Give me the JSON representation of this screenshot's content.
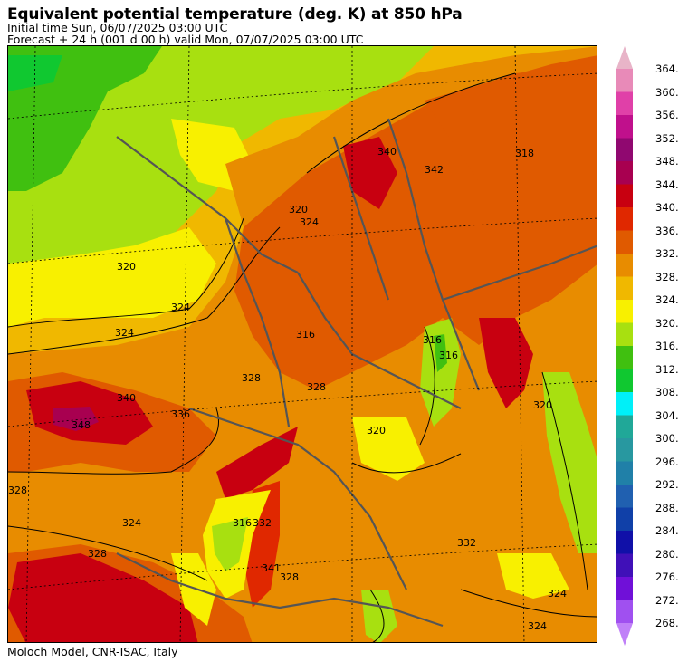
{
  "header": {
    "title": "Equivalent potential temperature (deg. K) at 850 hPa",
    "initial_time": "Initial time  Sun, 06/07/2025  03:00 UTC",
    "forecast": "Forecast  +  24 h  (001 d 00 h)  valid Mon, 07/07/2025  03:00 UTC"
  },
  "footer": "Moloch Model, CNR-ISAC, Italy",
  "colorbar": {
    "labels": [
      "364.",
      "360.",
      "356.",
      "352.",
      "348.",
      "344.",
      "340.",
      "336.",
      "332.",
      "328.",
      "324.",
      "320.",
      "316.",
      "312.",
      "308.",
      "304.",
      "300.",
      "296.",
      "292.",
      "288.",
      "284.",
      "280.",
      "276.",
      "272.",
      "268."
    ],
    "colors_top_to_bottom": [
      "#e8b4c8",
      "#e88ab8",
      "#e040a8",
      "#c0108c",
      "#900870",
      "#a80050",
      "#c80010",
      "#e02800",
      "#e05a00",
      "#e88c00",
      "#f0b800",
      "#f8f000",
      "#a8e010",
      "#40c010",
      "#10c830",
      "#00f0f8",
      "#20a898",
      "#2898a0",
      "#2080a8",
      "#2060b0",
      "#1040a8",
      "#1010a8",
      "#4010b8",
      "#7010d8",
      "#a050f0",
      "#c080f8"
    ]
  },
  "map": {
    "contour_labels": [
      "320",
      "324",
      "324",
      "324",
      "328",
      "328",
      "328",
      "328",
      "316",
      "316",
      "316",
      "318",
      "320",
      "320",
      "324",
      "332",
      "336",
      "340",
      "340",
      "341",
      "342",
      "348",
      "316",
      "320",
      "324",
      "324",
      "332",
      "328"
    ]
  }
}
